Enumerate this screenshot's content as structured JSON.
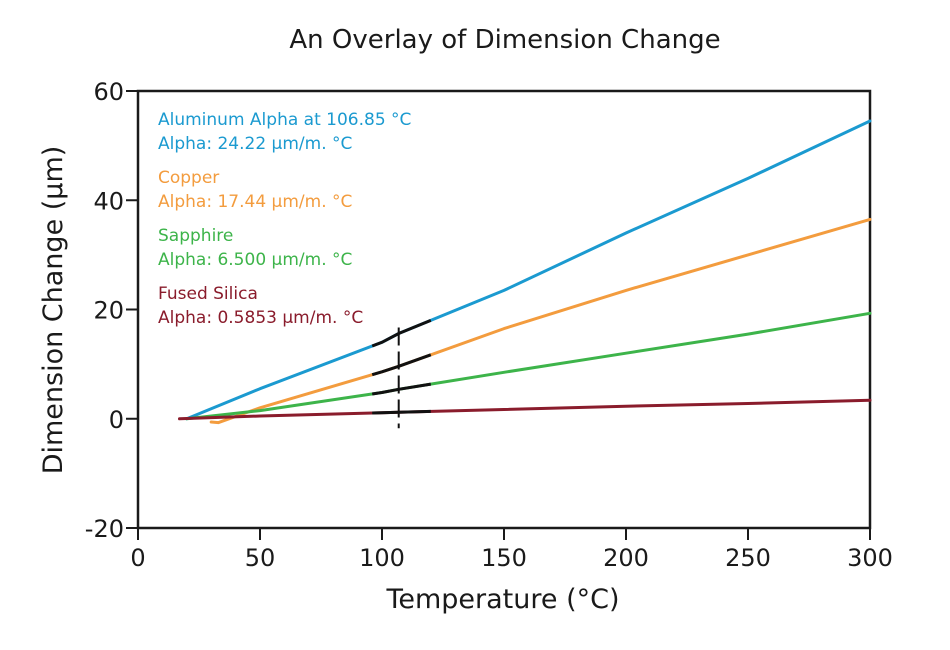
{
  "chart_data": {
    "type": "line",
    "title": "An Overlay of Dimension Change",
    "xlabel": "Temperature (°C)",
    "ylabel": "Dimension Change (µm)",
    "xlim": [
      0,
      300
    ],
    "ylim": [
      -20,
      60
    ],
    "xticks": [
      "0",
      "50",
      "100",
      "150",
      "200",
      "250",
      "300"
    ],
    "yticks": [
      "-20",
      "0",
      "20",
      "40",
      "60"
    ],
    "grid": false,
    "legend_position": "top-left",
    "marker_temperature": 106.85,
    "series": [
      {
        "name": "Aluminum Alpha at 106.85 °C",
        "alpha_label": "Alpha: 24.22 µm/m. °C",
        "color": "#1b9ad0",
        "x": [
          20,
          50,
          100,
          106.85,
          150,
          200,
          250,
          300
        ],
        "y": [
          0,
          5.5,
          14.0,
          15.6,
          23.5,
          34.0,
          44.0,
          54.5
        ],
        "marker_segment": [
          96,
          120
        ]
      },
      {
        "name": "Copper",
        "alpha_label": "Alpha: 17.44 µm/m. °C",
        "color": "#f39c3e",
        "x": [
          30,
          33,
          50,
          100,
          106.85,
          150,
          200,
          250,
          300
        ],
        "y": [
          -0.6,
          -0.7,
          2.0,
          8.6,
          9.6,
          16.5,
          23.5,
          30.0,
          36.5
        ],
        "marker_segment": [
          96,
          120
        ]
      },
      {
        "name": "Sapphire",
        "alpha_label": "Alpha: 6.500 µm/m. °C",
        "color": "#3db44a",
        "x": [
          20,
          50,
          100,
          106.85,
          150,
          200,
          250,
          300
        ],
        "y": [
          0,
          1.5,
          4.8,
          5.4,
          8.5,
          12.0,
          15.5,
          19.3
        ],
        "marker_segment": [
          96,
          120
        ]
      },
      {
        "name": "Fused Silica",
        "alpha_label": "Alpha: 0.5853 µm/m. °C",
        "color": "#8a1c2c",
        "x": [
          17,
          50,
          100,
          106.85,
          150,
          200,
          250,
          300
        ],
        "y": [
          0,
          0.5,
          1.1,
          1.2,
          1.7,
          2.3,
          2.8,
          3.4
        ],
        "marker_segment": [
          96,
          120
        ]
      }
    ]
  }
}
